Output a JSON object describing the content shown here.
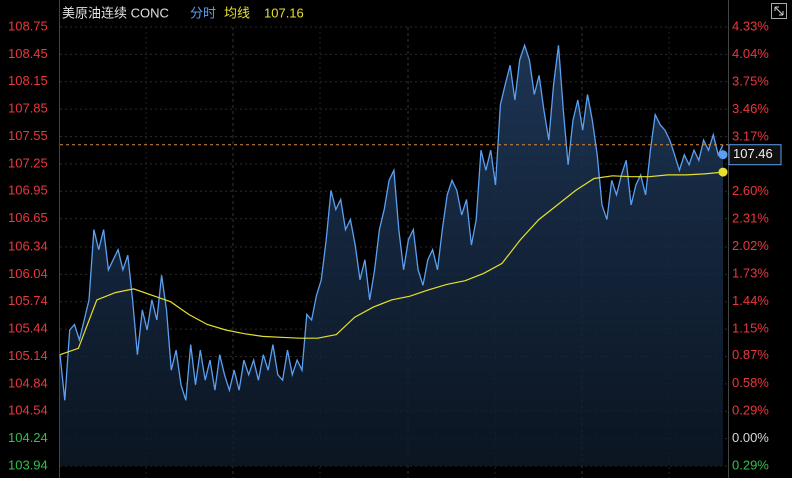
{
  "chart_data": {
    "type": "line",
    "title": "美原油连续 CONC",
    "ylim": [
      103.94,
      108.75
    ],
    "yticks": [
      108.75,
      108.45,
      108.15,
      107.85,
      107.55,
      107.25,
      106.95,
      106.65,
      106.34,
      106.04,
      105.74,
      105.44,
      105.14,
      104.84,
      104.54,
      104.24,
      103.94
    ],
    "y2lim": [
      -0.29,
      4.33
    ],
    "y2ticks": [
      {
        "value": 4.33,
        "label": "4.33%"
      },
      {
        "value": 4.04,
        "label": "4.04%"
      },
      {
        "value": 3.75,
        "label": "3.75%"
      },
      {
        "value": 3.46,
        "label": "3.46%"
      },
      {
        "value": 3.17,
        "label": "3.17%"
      },
      {
        "value": 2.6,
        "label": "2.60%"
      },
      {
        "value": 2.31,
        "label": "2.31%"
      },
      {
        "value": 2.02,
        "label": "2.02%"
      },
      {
        "value": 1.73,
        "label": "1.73%"
      },
      {
        "value": 1.44,
        "label": "1.44%"
      },
      {
        "value": 1.15,
        "label": "1.15%"
      },
      {
        "value": 0.87,
        "label": "0.87%"
      },
      {
        "value": 0.58,
        "label": "0.58%"
      },
      {
        "value": 0.29,
        "label": "0.29%"
      },
      {
        "value": 0.0,
        "label": "0.00%"
      },
      {
        "value": -0.29,
        "label": "0.29%"
      }
    ],
    "grid": true,
    "up_color": "#e8383d",
    "down_color": "#2fc24a",
    "flat_color": "#d8d8d8",
    "series": [
      {
        "name": "分时",
        "color": "#5b9ff0",
        "current": 107.46,
        "values": [
          105.16,
          104.66,
          105.43,
          105.49,
          105.32,
          105.54,
          105.76,
          106.53,
          106.31,
          106.53,
          106.09,
          106.2,
          106.31,
          106.09,
          106.25,
          105.76,
          105.16,
          105.65,
          105.43,
          105.76,
          105.54,
          106.03,
          105.65,
          104.99,
          105.21,
          104.83,
          104.66,
          105.27,
          104.83,
          105.21,
          104.88,
          105.1,
          104.77,
          105.16,
          104.94,
          104.77,
          104.99,
          104.77,
          105.1,
          104.94,
          105.1,
          104.88,
          105.16,
          104.99,
          105.27,
          104.94,
          104.88,
          105.21,
          104.94,
          105.1,
          104.99,
          105.6,
          105.54,
          105.81,
          105.98,
          106.42,
          106.96,
          106.75,
          106.86,
          106.53,
          106.64,
          106.36,
          105.98,
          106.2,
          105.76,
          106.09,
          106.53,
          106.75,
          107.07,
          107.18,
          106.53,
          106.09,
          106.42,
          106.53,
          106.09,
          105.92,
          106.2,
          106.31,
          106.09,
          106.53,
          106.91,
          107.07,
          106.96,
          106.69,
          106.86,
          106.36,
          106.64,
          107.4,
          107.18,
          107.4,
          107.02,
          107.9,
          108.12,
          108.33,
          107.95,
          108.39,
          108.55,
          108.39,
          108.01,
          108.22,
          107.84,
          107.51,
          108.12,
          108.55,
          107.84,
          107.24,
          107.73,
          107.95,
          107.62,
          108.01,
          107.73,
          107.35,
          106.8,
          106.64,
          107.07,
          106.91,
          107.13,
          107.29,
          106.8,
          107.02,
          107.13,
          106.91,
          107.4,
          107.79,
          107.68,
          107.62,
          107.51,
          107.35,
          107.18,
          107.35,
          107.24,
          107.4,
          107.29,
          107.51,
          107.4,
          107.57,
          107.35,
          107.46
        ]
      },
      {
        "name": "均线",
        "color": "#e6e02c",
        "current": 107.16,
        "values": [
          105.16,
          105.23,
          105.76,
          105.84,
          105.88,
          105.81,
          105.74,
          105.6,
          105.49,
          105.43,
          105.39,
          105.36,
          105.35,
          105.34,
          105.34,
          105.38,
          105.57,
          105.68,
          105.76,
          105.8,
          105.87,
          105.93,
          105.97,
          106.05,
          106.16,
          106.42,
          106.64,
          106.8,
          106.96,
          107.09,
          107.12,
          107.11,
          107.11,
          107.13,
          107.13,
          107.14,
          107.16
        ]
      }
    ]
  }
}
